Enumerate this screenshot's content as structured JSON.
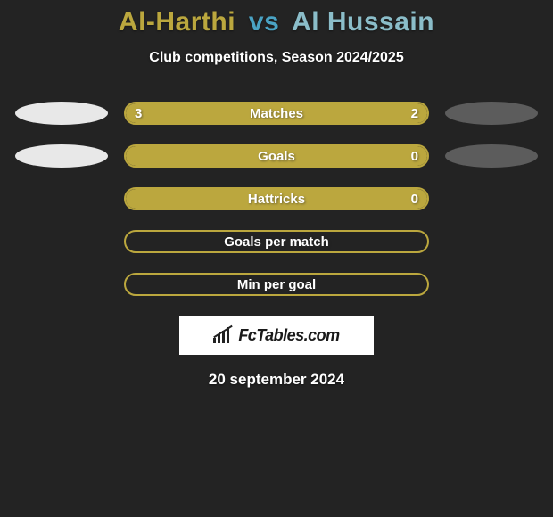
{
  "title": {
    "player1": "Al-Harthi",
    "vs": "vs",
    "player2": "Al Hussain",
    "player1_color": "#bba73e",
    "vs_color": "#4aa3c4",
    "player2_color": "#8bbdc9"
  },
  "subtitle": "Club competitions, Season 2024/2025",
  "colors": {
    "border": "#bba73e",
    "fill": "#bba73e",
    "oval_left": "#e8e8e8",
    "oval_right": "#5c5c5c",
    "background": "#232323"
  },
  "stats": [
    {
      "label": "Matches",
      "left_value": "3",
      "right_value": "2",
      "fill_pct": 100,
      "show_left_oval": true,
      "show_right_oval": true
    },
    {
      "label": "Goals",
      "left_value": "",
      "right_value": "0",
      "fill_pct": 100,
      "show_left_oval": true,
      "show_right_oval": true
    },
    {
      "label": "Hattricks",
      "left_value": "",
      "right_value": "0",
      "fill_pct": 100,
      "show_left_oval": false,
      "show_right_oval": false
    },
    {
      "label": "Goals per match",
      "left_value": "",
      "right_value": "",
      "fill_pct": 0,
      "show_left_oval": false,
      "show_right_oval": false
    },
    {
      "label": "Min per goal",
      "left_value": "",
      "right_value": "",
      "fill_pct": 0,
      "show_left_oval": false,
      "show_right_oval": false
    }
  ],
  "logo_text": "FcTables.com",
  "date": "20 september 2024",
  "font_sizes": {
    "title": 30,
    "subtitle": 16,
    "bar_label": 15,
    "date": 17
  }
}
